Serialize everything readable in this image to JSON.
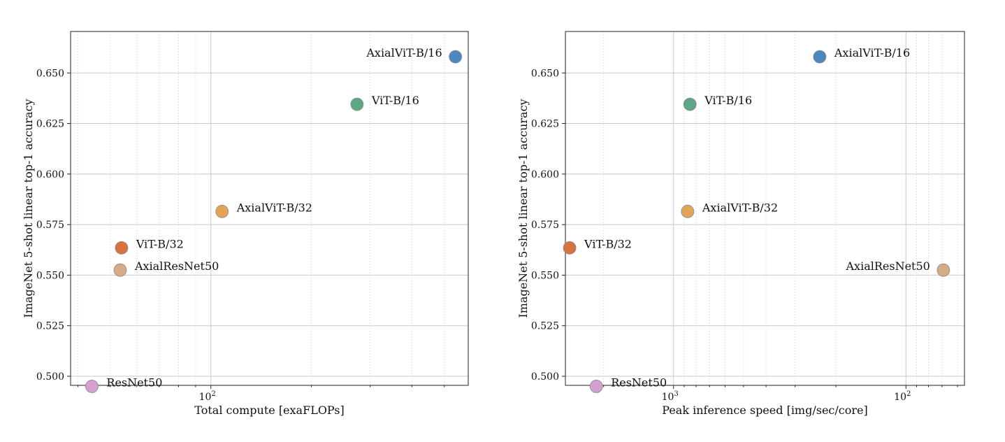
{
  "chart_data": [
    {
      "type": "scatter",
      "xlabel": "Total compute [exaFLOPs]",
      "ylabel": "ImageNet 5-shot linear top-1 accuracy",
      "xscale": "log",
      "xlim": [
        38,
        590
      ],
      "ylim": [
        0.4955,
        0.6705
      ],
      "x_ticks": [
        {
          "value": 100,
          "label": "10",
          "exp": "2"
        }
      ],
      "y_ticks": [
        {
          "value": 0.5,
          "label": "0.500"
        },
        {
          "value": 0.525,
          "label": "0.525"
        },
        {
          "value": 0.55,
          "label": "0.550"
        },
        {
          "value": 0.575,
          "label": "0.575"
        },
        {
          "value": 0.6,
          "label": "0.600"
        },
        {
          "value": 0.625,
          "label": "0.625"
        },
        {
          "value": 0.65,
          "label": "0.650"
        }
      ],
      "grid": true,
      "points": [
        {
          "name": "AxialViT-B/16",
          "x": 540,
          "y": 0.658,
          "color": "#4c87be",
          "label_side": "left"
        },
        {
          "name": "ViT-B/16",
          "x": 274,
          "y": 0.6345,
          "color": "#5ba786",
          "label_side": "right"
        },
        {
          "name": "AxialViT-B/32",
          "x": 108,
          "y": 0.5815,
          "color": "#e3a555",
          "label_side": "right"
        },
        {
          "name": "ViT-B/32",
          "x": 54,
          "y": 0.5635,
          "color": "#d8723e",
          "label_side": "right"
        },
        {
          "name": "AxialResNet50",
          "x": 53.5,
          "y": 0.5525,
          "color": "#d5aa86",
          "label_side": "right"
        },
        {
          "name": "ResNet50",
          "x": 44,
          "y": 0.495,
          "color": "#d59fd2",
          "label_side": "right"
        }
      ]
    },
    {
      "type": "scatter",
      "xlabel": "Peak inference speed [img/sec/core]",
      "ylabel": "ImageNet 5-shot linear top-1 accuracy",
      "xscale": "log",
      "x_reversed": true,
      "xlim": [
        2920,
        56
      ],
      "ylim": [
        0.4955,
        0.6705
      ],
      "x_ticks": [
        {
          "value": 1000,
          "label": "10",
          "exp": "3"
        },
        {
          "value": 100,
          "label": "10",
          "exp": "2"
        }
      ],
      "y_ticks": [
        {
          "value": 0.5,
          "label": "0.500"
        },
        {
          "value": 0.525,
          "label": "0.525"
        },
        {
          "value": 0.55,
          "label": "0.550"
        },
        {
          "value": 0.575,
          "label": "0.575"
        },
        {
          "value": 0.6,
          "label": "0.600"
        },
        {
          "value": 0.625,
          "label": "0.625"
        },
        {
          "value": 0.65,
          "label": "0.650"
        }
      ],
      "grid": true,
      "points": [
        {
          "name": "AxialViT-B/16",
          "x": 235,
          "y": 0.658,
          "color": "#4c87be",
          "label_side": "right"
        },
        {
          "name": "ViT-B/16",
          "x": 850,
          "y": 0.6345,
          "color": "#5ba786",
          "label_side": "right"
        },
        {
          "name": "AxialViT-B/32",
          "x": 870,
          "y": 0.5815,
          "color": "#e3a555",
          "label_side": "right"
        },
        {
          "name": "ViT-B/32",
          "x": 2800,
          "y": 0.5635,
          "color": "#d8723e",
          "label_side": "right"
        },
        {
          "name": "AxialResNet50",
          "x": 69,
          "y": 0.5525,
          "color": "#d5aa86",
          "label_side": "left"
        },
        {
          "name": "ResNet50",
          "x": 2150,
          "y": 0.495,
          "color": "#d59fd2",
          "label_side": "right"
        }
      ]
    }
  ]
}
